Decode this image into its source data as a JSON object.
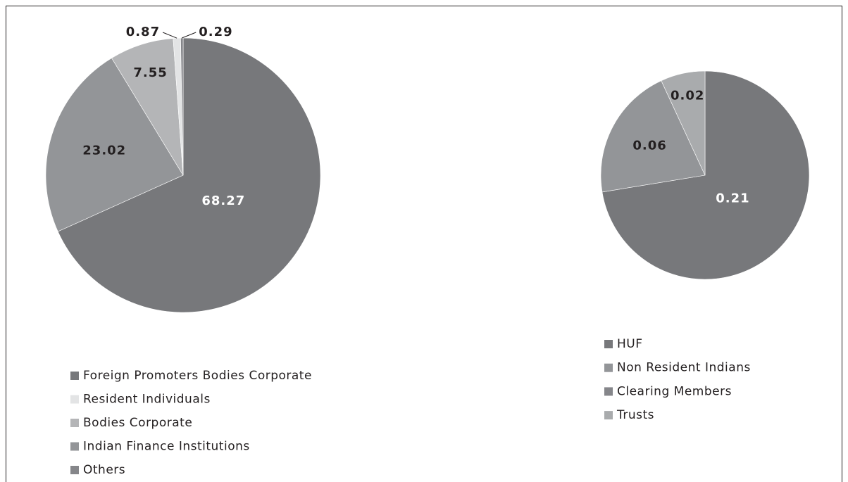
{
  "chart_data": [
    {
      "type": "pie",
      "categories": [
        "Foreign Promoters Bodies Corporate",
        "Resident Individuals",
        "Bodies Corporate",
        "Indian Finance Institutions",
        "Others"
      ],
      "values": [
        68.27,
        0.87,
        7.55,
        23.02,
        0.29
      ],
      "colors": [
        "#77787b",
        "#e3e4e5",
        "#b4b5b7",
        "#939598",
        "#85868a"
      ]
    },
    {
      "type": "pie",
      "categories": [
        "HUF",
        "Non Resident Indians",
        "Clearing Members",
        "Trusts"
      ],
      "values": [
        0.21,
        0.06,
        0,
        0.02
      ],
      "colors": [
        "#77787b",
        "#939598",
        "#85868a",
        "#a9abad"
      ]
    }
  ]
}
